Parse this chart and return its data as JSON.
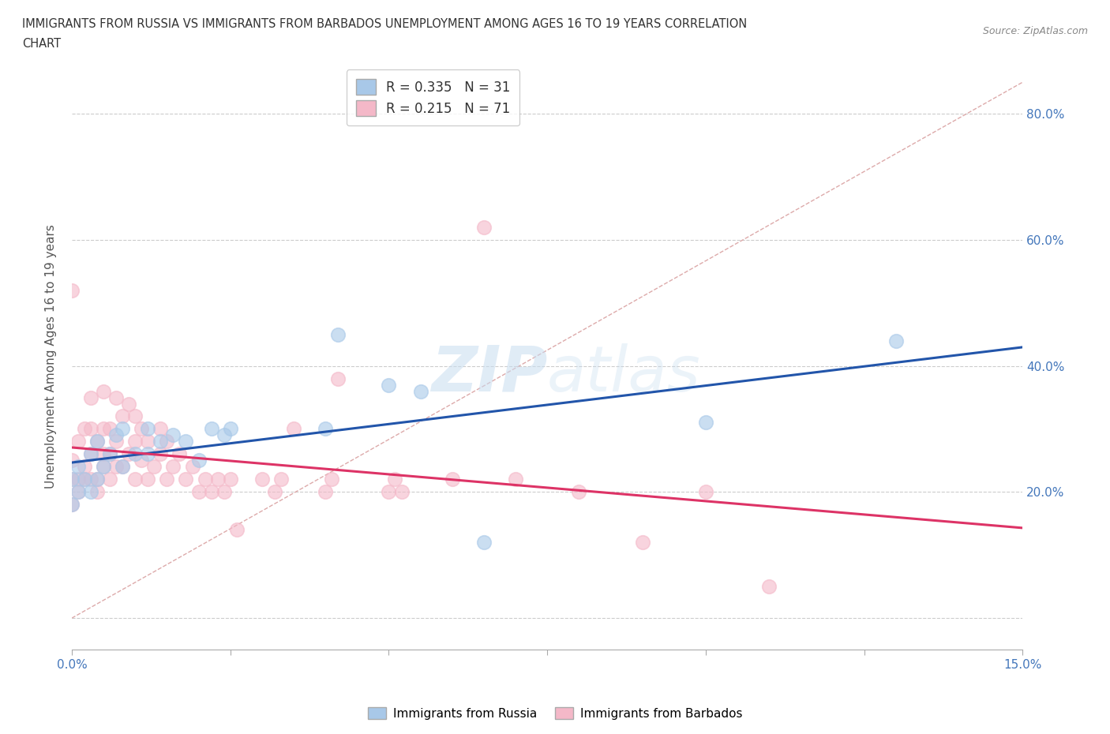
{
  "title_line1": "IMMIGRANTS FROM RUSSIA VS IMMIGRANTS FROM BARBADOS UNEMPLOYMENT AMONG AGES 16 TO 19 YEARS CORRELATION",
  "title_line2": "CHART",
  "source": "Source: ZipAtlas.com",
  "ylabel": "Unemployment Among Ages 16 to 19 years",
  "xlim": [
    0.0,
    0.15
  ],
  "ylim": [
    -0.05,
    0.88
  ],
  "x_ticks": [
    0.0,
    0.025,
    0.05,
    0.075,
    0.1,
    0.125,
    0.15
  ],
  "x_tick_labels": [
    "0.0%",
    "",
    "",
    "",
    "",
    "",
    "15.0%"
  ],
  "y_ticks": [
    0.0,
    0.2,
    0.4,
    0.6,
    0.8
  ],
  "y_tick_labels": [
    "",
    "20.0%",
    "40.0%",
    "60.0%",
    "80.0%"
  ],
  "russia_R": 0.335,
  "russia_N": 31,
  "barbados_R": 0.215,
  "barbados_N": 71,
  "russia_color": "#a8c8e8",
  "barbados_color": "#f4b8c8",
  "russia_line_color": "#2255aa",
  "barbados_line_color": "#dd3366",
  "diag_color": "#ddaaaa",
  "russia_points_x": [
    0.0,
    0.0,
    0.001,
    0.001,
    0.002,
    0.003,
    0.003,
    0.004,
    0.004,
    0.005,
    0.006,
    0.007,
    0.008,
    0.008,
    0.01,
    0.012,
    0.012,
    0.014,
    0.016,
    0.018,
    0.02,
    0.022,
    0.024,
    0.025,
    0.04,
    0.042,
    0.05,
    0.055,
    0.065,
    0.1,
    0.13
  ],
  "russia_points_y": [
    0.18,
    0.22,
    0.2,
    0.24,
    0.22,
    0.2,
    0.26,
    0.22,
    0.28,
    0.24,
    0.26,
    0.29,
    0.24,
    0.3,
    0.26,
    0.26,
    0.3,
    0.28,
    0.29,
    0.28,
    0.25,
    0.3,
    0.29,
    0.3,
    0.3,
    0.45,
    0.37,
    0.36,
    0.12,
    0.31,
    0.44
  ],
  "barbados_points_x": [
    0.0,
    0.0,
    0.0,
    0.0,
    0.001,
    0.001,
    0.001,
    0.002,
    0.002,
    0.002,
    0.003,
    0.003,
    0.003,
    0.003,
    0.004,
    0.004,
    0.004,
    0.005,
    0.005,
    0.005,
    0.005,
    0.006,
    0.006,
    0.006,
    0.007,
    0.007,
    0.007,
    0.008,
    0.008,
    0.009,
    0.009,
    0.01,
    0.01,
    0.01,
    0.011,
    0.011,
    0.012,
    0.012,
    0.013,
    0.014,
    0.014,
    0.015,
    0.015,
    0.016,
    0.017,
    0.018,
    0.019,
    0.02,
    0.021,
    0.022,
    0.023,
    0.024,
    0.025,
    0.026,
    0.03,
    0.032,
    0.033,
    0.035,
    0.04,
    0.041,
    0.042,
    0.05,
    0.051,
    0.052,
    0.06,
    0.065,
    0.07,
    0.08,
    0.09,
    0.1,
    0.11
  ],
  "barbados_points_y": [
    0.18,
    0.22,
    0.25,
    0.52,
    0.2,
    0.28,
    0.22,
    0.24,
    0.3,
    0.22,
    0.22,
    0.26,
    0.3,
    0.35,
    0.2,
    0.28,
    0.22,
    0.24,
    0.26,
    0.3,
    0.36,
    0.22,
    0.26,
    0.3,
    0.24,
    0.28,
    0.35,
    0.24,
    0.32,
    0.26,
    0.34,
    0.22,
    0.28,
    0.32,
    0.25,
    0.3,
    0.22,
    0.28,
    0.24,
    0.26,
    0.3,
    0.22,
    0.28,
    0.24,
    0.26,
    0.22,
    0.24,
    0.2,
    0.22,
    0.2,
    0.22,
    0.2,
    0.22,
    0.14,
    0.22,
    0.2,
    0.22,
    0.3,
    0.2,
    0.22,
    0.38,
    0.2,
    0.22,
    0.2,
    0.22,
    0.62,
    0.22,
    0.2,
    0.12,
    0.2,
    0.05
  ],
  "legend_russia_label": "R = 0.335   N = 31",
  "legend_barbados_label": "R = 0.215   N = 71",
  "bottom_legend_russia": "Immigrants from Russia",
  "bottom_legend_barbados": "Immigrants from Barbados"
}
